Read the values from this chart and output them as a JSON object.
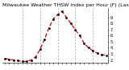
{
  "title": "Milwaukee Weather THSW Index per Hour (F) (Last 24 Hours)",
  "hours": [
    0,
    1,
    2,
    3,
    4,
    5,
    6,
    7,
    8,
    9,
    10,
    11,
    12,
    13,
    14,
    15,
    16,
    17,
    18,
    19,
    20,
    21,
    22,
    23
  ],
  "values": [
    30,
    29,
    28,
    27,
    26,
    26,
    28,
    32,
    42,
    55,
    70,
    82,
    88,
    92,
    84,
    76,
    68,
    60,
    50,
    44,
    40,
    37,
    35,
    34
  ],
  "line_color": "#dd0000",
  "marker_color": "#000000",
  "bg_color": "#ffffff",
  "grid_color": "#888888",
  "ylim": [
    24,
    96
  ],
  "ytick_labels": [
    "2.",
    "3.",
    "4.",
    "5.",
    "6.",
    "7.",
    "8.",
    "9."
  ],
  "ytick_values": [
    28,
    36,
    44,
    52,
    60,
    68,
    76,
    84
  ],
  "title_fontsize": 4.5,
  "tick_fontsize": 3.5,
  "vline_positions": [
    4,
    8,
    12,
    16,
    20
  ]
}
